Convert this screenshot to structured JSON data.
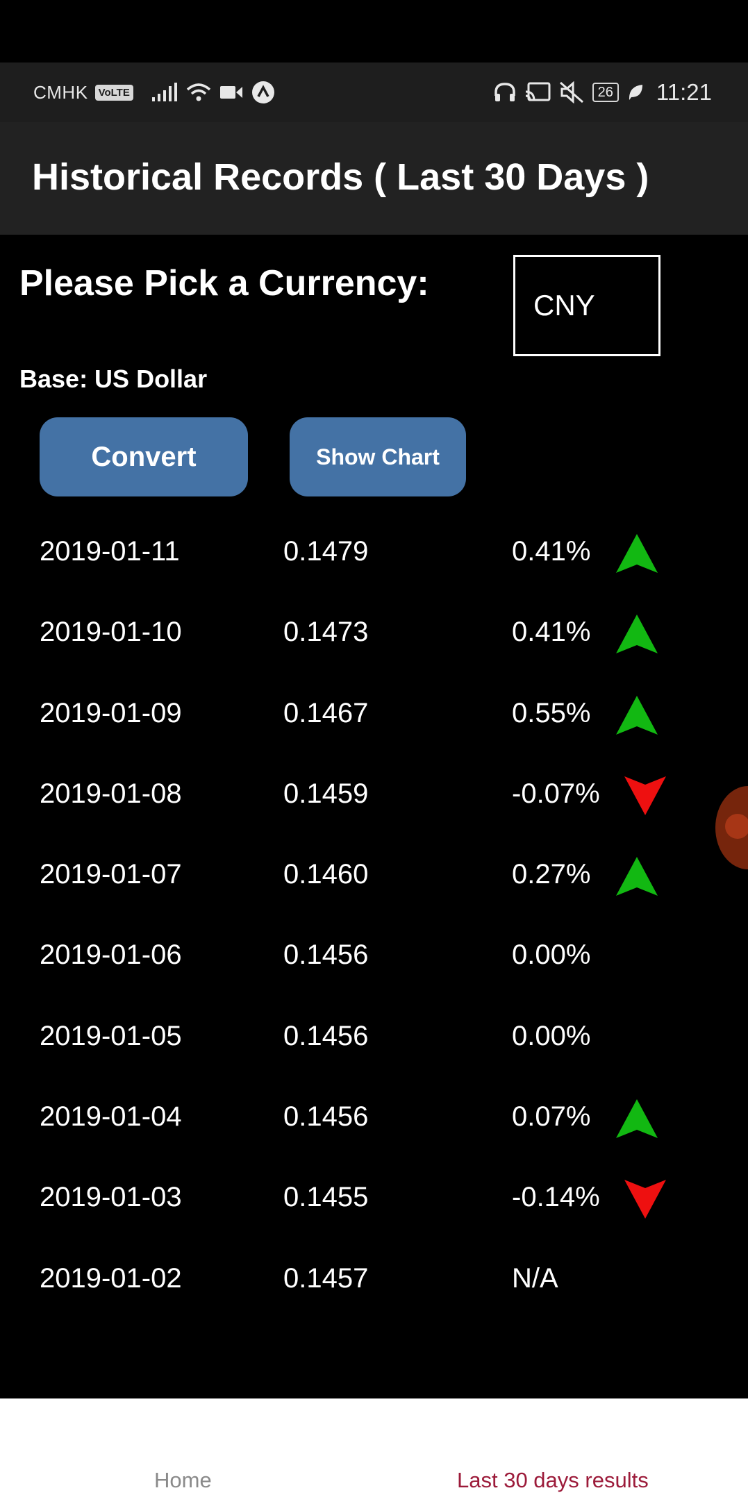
{
  "status_bar": {
    "carrier": "CMHK",
    "volte": "VoLTE",
    "battery": "26",
    "time": "11:21"
  },
  "header": {
    "title": "Historical Records ( Last 30 Days )"
  },
  "picker": {
    "label": "Please Pick a Currency:",
    "selected_currency": "CNY",
    "base_label": "Base: US Dollar"
  },
  "buttons": {
    "convert": "Convert",
    "show_chart": "Show Chart"
  },
  "colors": {
    "up": "#12b812",
    "down": "#ee1010",
    "button": "#4472a5",
    "active_tab": "#9c1b3a"
  },
  "records": [
    {
      "date": "2019-01-11",
      "rate": "0.1479",
      "change": "0.41%",
      "trend": "up"
    },
    {
      "date": "2019-01-10",
      "rate": "0.1473",
      "change": "0.41%",
      "trend": "up"
    },
    {
      "date": "2019-01-09",
      "rate": "0.1467",
      "change": "0.55%",
      "trend": "up"
    },
    {
      "date": "2019-01-08",
      "rate": "0.1459",
      "change": "-0.07%",
      "trend": "down"
    },
    {
      "date": "2019-01-07",
      "rate": "0.1460",
      "change": "0.27%",
      "trend": "up"
    },
    {
      "date": "2019-01-06",
      "rate": "0.1456",
      "change": "0.00%",
      "trend": "none"
    },
    {
      "date": "2019-01-05",
      "rate": "0.1456",
      "change": "0.00%",
      "trend": "none"
    },
    {
      "date": "2019-01-04",
      "rate": "0.1456",
      "change": "0.07%",
      "trend": "up"
    },
    {
      "date": "2019-01-03",
      "rate": "0.1455",
      "change": "-0.14%",
      "trend": "down"
    },
    {
      "date": "2019-01-02",
      "rate": "0.1457",
      "change": "N/A",
      "trend": "none"
    }
  ],
  "bottom_nav": {
    "home": "Home",
    "last_30": "Last 30 days results"
  }
}
